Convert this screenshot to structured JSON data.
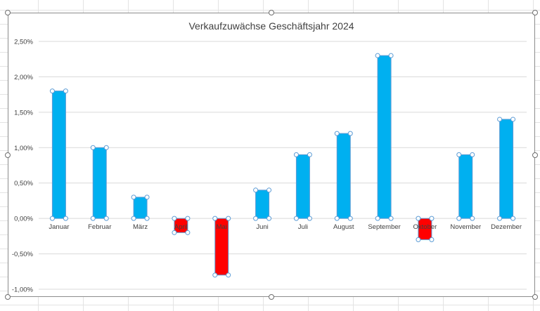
{
  "chart_data": {
    "type": "bar",
    "title": "Verkaufzuwächse Geschäftsjahr 2024",
    "categories": [
      "Januar",
      "Februar",
      "März",
      "April",
      "Mai",
      "Juni",
      "Juli",
      "August",
      "September",
      "Oktober",
      "November",
      "Dezember"
    ],
    "values": [
      1.8,
      1.0,
      0.3,
      -0.2,
      -0.8,
      0.4,
      0.9,
      1.2,
      2.3,
      -0.3,
      0.9,
      1.4
    ],
    "value_unit": "%",
    "ylim": [
      -1.0,
      2.5
    ],
    "yticks": [
      2.5,
      2.0,
      1.5,
      1.0,
      0.5,
      0.0,
      -0.5,
      -1.0
    ],
    "ytick_labels": [
      "2,50%",
      "2,00%",
      "1,50%",
      "1,00%",
      "0,50%",
      "0,00%",
      "-0,50%",
      "-1,00%"
    ],
    "grid": true,
    "colors": {
      "positive": "#00b0f0",
      "negative": "#ff0000",
      "gridline": "#d9d9d9",
      "text": "#404040",
      "selection": "#5b9bd5"
    },
    "selected_series": true
  }
}
